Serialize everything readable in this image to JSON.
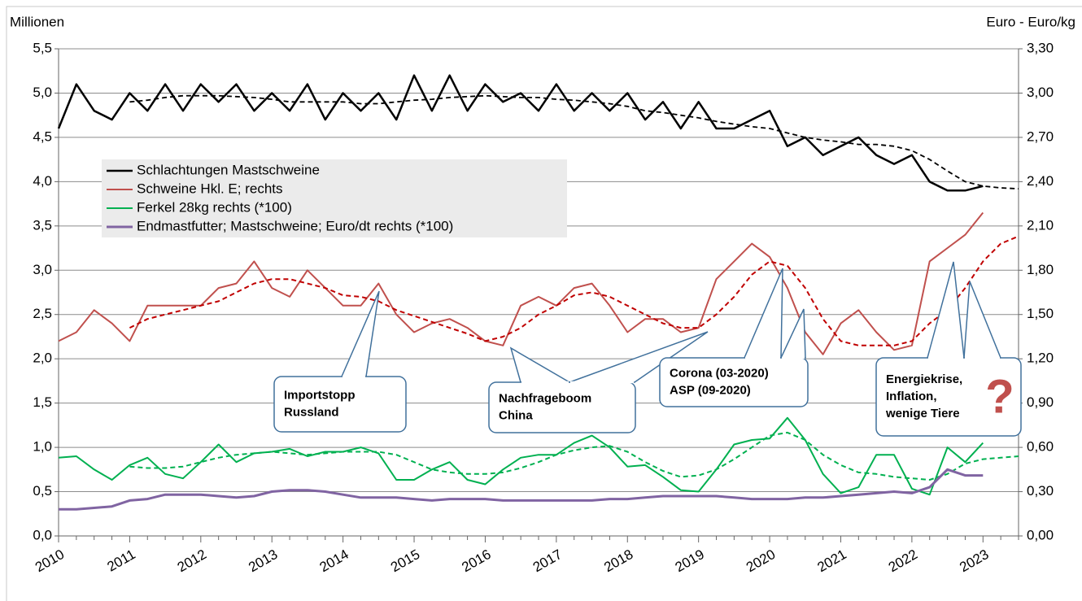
{
  "chart_data": {
    "type": "line",
    "y_label": "Millionen",
    "y2_label": "Euro - Euro/kg",
    "categories": [
      "2010",
      null,
      null,
      null,
      "2011",
      null,
      null,
      null,
      "2012",
      null,
      null,
      null,
      "2013",
      null,
      null,
      null,
      "2014",
      null,
      null,
      null,
      "2015",
      null,
      null,
      null,
      "2016",
      null,
      null,
      null,
      "2017",
      null,
      null,
      null,
      "2018",
      null,
      null,
      null,
      "2019",
      null,
      null,
      null,
      "2020",
      null,
      null,
      null,
      "2021",
      null,
      null,
      null,
      "2022",
      null,
      null,
      null,
      "2023",
      null,
      null
    ],
    "ylim": [
      0,
      5.5
    ],
    "yticks": [
      {
        "value": 0,
        "label": "0,0"
      },
      {
        "value": 0.5,
        "label": "0,5"
      },
      {
        "value": 1,
        "label": "1,0"
      },
      {
        "value": 1.5,
        "label": "1,5"
      },
      {
        "value": 2,
        "label": "2,0"
      },
      {
        "value": 2.5,
        "label": "2,5"
      },
      {
        "value": 3,
        "label": "3,0"
      },
      {
        "value": 3.5,
        "label": "3,5"
      },
      {
        "value": 4,
        "label": "4,0"
      },
      {
        "value": 4.5,
        "label": "4,5"
      },
      {
        "value": 5,
        "label": "5,0"
      },
      {
        "value": 5.5,
        "label": "5,5"
      }
    ],
    "y2lim": [
      0,
      3.3
    ],
    "y2ticks": [
      {
        "value": 0,
        "label": "0,00"
      },
      {
        "value": 0.3,
        "label": "0,30"
      },
      {
        "value": 0.6,
        "label": "0,60"
      },
      {
        "value": 0.9,
        "label": "0,90"
      },
      {
        "value": 1.2,
        "label": "1,20"
      },
      {
        "value": 1.5,
        "label": "1,50"
      },
      {
        "value": 1.8,
        "label": "1,80"
      },
      {
        "value": 2.1,
        "label": "2,10"
      },
      {
        "value": 2.4,
        "label": "2,40"
      },
      {
        "value": 2.7,
        "label": "2,70"
      },
      {
        "value": 3.0,
        "label": "3,00"
      },
      {
        "value": 3.3,
        "label": "3,30"
      }
    ],
    "grid": true,
    "series": [
      {
        "name": "Schlachtungen Mastschweine",
        "color": "#000000",
        "width": 2.5,
        "values": [
          4.6,
          5.1,
          4.8,
          4.7,
          5.0,
          4.8,
          5.1,
          4.8,
          5.1,
          4.9,
          5.1,
          4.8,
          5.0,
          4.8,
          5.1,
          4.7,
          5.0,
          4.8,
          5.0,
          4.7,
          5.2,
          4.8,
          5.2,
          4.8,
          5.1,
          4.9,
          5.0,
          4.8,
          5.1,
          4.8,
          5.0,
          4.8,
          5.0,
          4.7,
          4.9,
          4.6,
          4.9,
          4.6,
          4.6,
          4.7,
          4.8,
          4.4,
          4.5,
          4.3,
          4.4,
          4.5,
          4.3,
          4.2,
          4.3,
          4.0,
          3.9,
          3.9,
          3.95,
          null,
          null
        ]
      },
      {
        "color": "#000000",
        "width": 1.8,
        "dashed": true,
        "values": [
          null,
          null,
          null,
          null,
          4.9,
          4.92,
          4.95,
          4.97,
          4.97,
          4.97,
          4.96,
          4.95,
          4.93,
          4.9,
          4.9,
          4.9,
          4.9,
          4.88,
          4.88,
          4.9,
          4.92,
          4.93,
          4.95,
          4.96,
          4.97,
          4.96,
          4.95,
          4.95,
          4.93,
          4.92,
          4.9,
          4.88,
          4.85,
          4.8,
          4.78,
          4.75,
          4.72,
          4.68,
          4.65,
          4.62,
          4.6,
          4.55,
          4.5,
          4.47,
          4.45,
          4.42,
          4.42,
          4.4,
          4.35,
          4.25,
          4.12,
          4.0,
          3.95,
          3.93,
          3.92
        ]
      },
      {
        "name": "Schweine Hkl. E; rechts",
        "color": "#c0504d",
        "width": 2,
        "axis": "y2",
        "values": [
          1.32,
          1.38,
          1.53,
          1.44,
          1.32,
          1.56,
          1.56,
          1.56,
          1.56,
          1.68,
          1.71,
          1.86,
          1.68,
          1.62,
          1.8,
          1.68,
          1.56,
          1.56,
          1.71,
          1.5,
          1.38,
          1.44,
          1.47,
          1.41,
          1.32,
          1.29,
          1.56,
          1.62,
          1.56,
          1.68,
          1.71,
          1.56,
          1.38,
          1.47,
          1.47,
          1.38,
          1.41,
          1.74,
          1.86,
          1.98,
          1.89,
          1.68,
          1.38,
          1.23,
          1.44,
          1.53,
          1.38,
          1.26,
          1.29,
          1.86,
          1.95,
          2.04,
          2.19,
          null,
          null
        ]
      },
      {
        "color": "#c00000",
        "width": 2,
        "dashed": true,
        "axis": "y2",
        "values": [
          null,
          null,
          null,
          null,
          1.41,
          1.47,
          1.5,
          1.53,
          1.56,
          1.59,
          1.65,
          1.71,
          1.74,
          1.74,
          1.71,
          1.68,
          1.63,
          1.62,
          1.59,
          1.53,
          1.49,
          1.45,
          1.41,
          1.37,
          1.32,
          1.35,
          1.41,
          1.5,
          1.56,
          1.63,
          1.65,
          1.62,
          1.56,
          1.5,
          1.44,
          1.41,
          1.41,
          1.5,
          1.62,
          1.77,
          1.86,
          1.83,
          1.68,
          1.47,
          1.32,
          1.29,
          1.29,
          1.29,
          1.32,
          1.44,
          1.53,
          1.68,
          1.86,
          1.98,
          2.03
        ]
      },
      {
        "name": "Ferkel 28kg rechts (*100)",
        "color": "#00b050",
        "width": 2,
        "axis": "y2",
        "values": [
          0.53,
          0.54,
          0.45,
          0.38,
          0.48,
          0.53,
          0.42,
          0.39,
          0.5,
          0.62,
          0.5,
          0.56,
          0.57,
          0.59,
          0.54,
          0.57,
          0.57,
          0.6,
          0.56,
          0.38,
          0.38,
          0.45,
          0.5,
          0.38,
          0.35,
          0.45,
          0.53,
          0.55,
          0.55,
          0.63,
          0.68,
          0.6,
          0.47,
          0.48,
          0.4,
          0.31,
          0.3,
          0.45,
          0.62,
          0.65,
          0.66,
          0.8,
          0.65,
          0.42,
          0.29,
          0.33,
          0.55,
          0.55,
          0.32,
          0.28,
          0.6,
          0.5,
          0.63,
          null,
          null
        ]
      },
      {
        "color": "#00b050",
        "width": 2,
        "dashed": true,
        "axis": "y2",
        "values": [
          null,
          null,
          null,
          null,
          0.47,
          0.46,
          0.46,
          0.47,
          0.5,
          0.53,
          0.55,
          0.56,
          0.57,
          0.56,
          0.55,
          0.56,
          0.57,
          0.57,
          0.57,
          0.55,
          0.5,
          0.45,
          0.43,
          0.42,
          0.42,
          0.43,
          0.46,
          0.5,
          0.55,
          0.58,
          0.6,
          0.61,
          0.57,
          0.5,
          0.44,
          0.4,
          0.41,
          0.45,
          0.52,
          0.6,
          0.68,
          0.7,
          0.65,
          0.55,
          0.48,
          0.43,
          0.42,
          0.4,
          0.39,
          0.38,
          0.42,
          0.49,
          0.52,
          0.53,
          0.54
        ]
      },
      {
        "name": "Endmastfutter; Mastschweine; Euro/dt rechts (*100)",
        "color": "#8064a2",
        "width": 3,
        "axis": "y2",
        "values": [
          0.18,
          0.18,
          0.19,
          0.2,
          0.24,
          0.25,
          0.28,
          0.28,
          0.28,
          0.27,
          0.26,
          0.27,
          0.3,
          0.31,
          0.31,
          0.3,
          0.28,
          0.26,
          0.26,
          0.26,
          0.25,
          0.24,
          0.25,
          0.25,
          0.25,
          0.24,
          0.24,
          0.24,
          0.24,
          0.24,
          0.24,
          0.25,
          0.25,
          0.26,
          0.27,
          0.27,
          0.27,
          0.27,
          0.26,
          0.25,
          0.25,
          0.25,
          0.26,
          0.26,
          0.27,
          0.28,
          0.29,
          0.3,
          0.29,
          0.33,
          0.45,
          0.41,
          0.41,
          null,
          null
        ]
      }
    ],
    "annotations": [
      {
        "lines": [
          "Importstopp",
          "Russland"
        ]
      },
      {
        "lines": [
          "Nachfrageboom",
          "China"
        ]
      },
      {
        "lines": [
          "Corona (03-2020)",
          "ASP (09-2020)"
        ]
      },
      {
        "lines": [
          "Energiekrise,",
          "Inflation,",
          "wenige Tiere"
        ],
        "symbol": "?"
      }
    ]
  }
}
